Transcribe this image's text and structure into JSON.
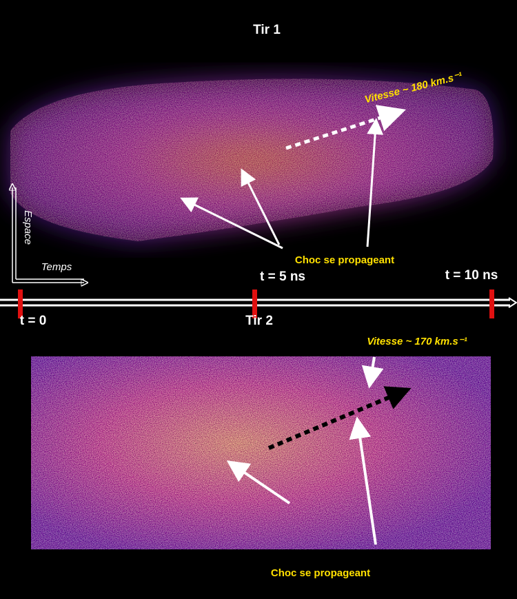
{
  "shot1": {
    "title": "Tir 1",
    "speed": "Vitesse ~ 180 km.s⁻¹",
    "shock": "Choc se propageant"
  },
  "axes": {
    "space": "Espace",
    "time": "Temps"
  },
  "timeline": {
    "t0": "t = 0",
    "t5": "t = 5 ns",
    "t10": "t = 10 ns"
  },
  "shot2": {
    "title": "Tir 2",
    "speed": "Vitesse ~ 170 km.s⁻¹",
    "shock": "Choc se propageant"
  }
}
